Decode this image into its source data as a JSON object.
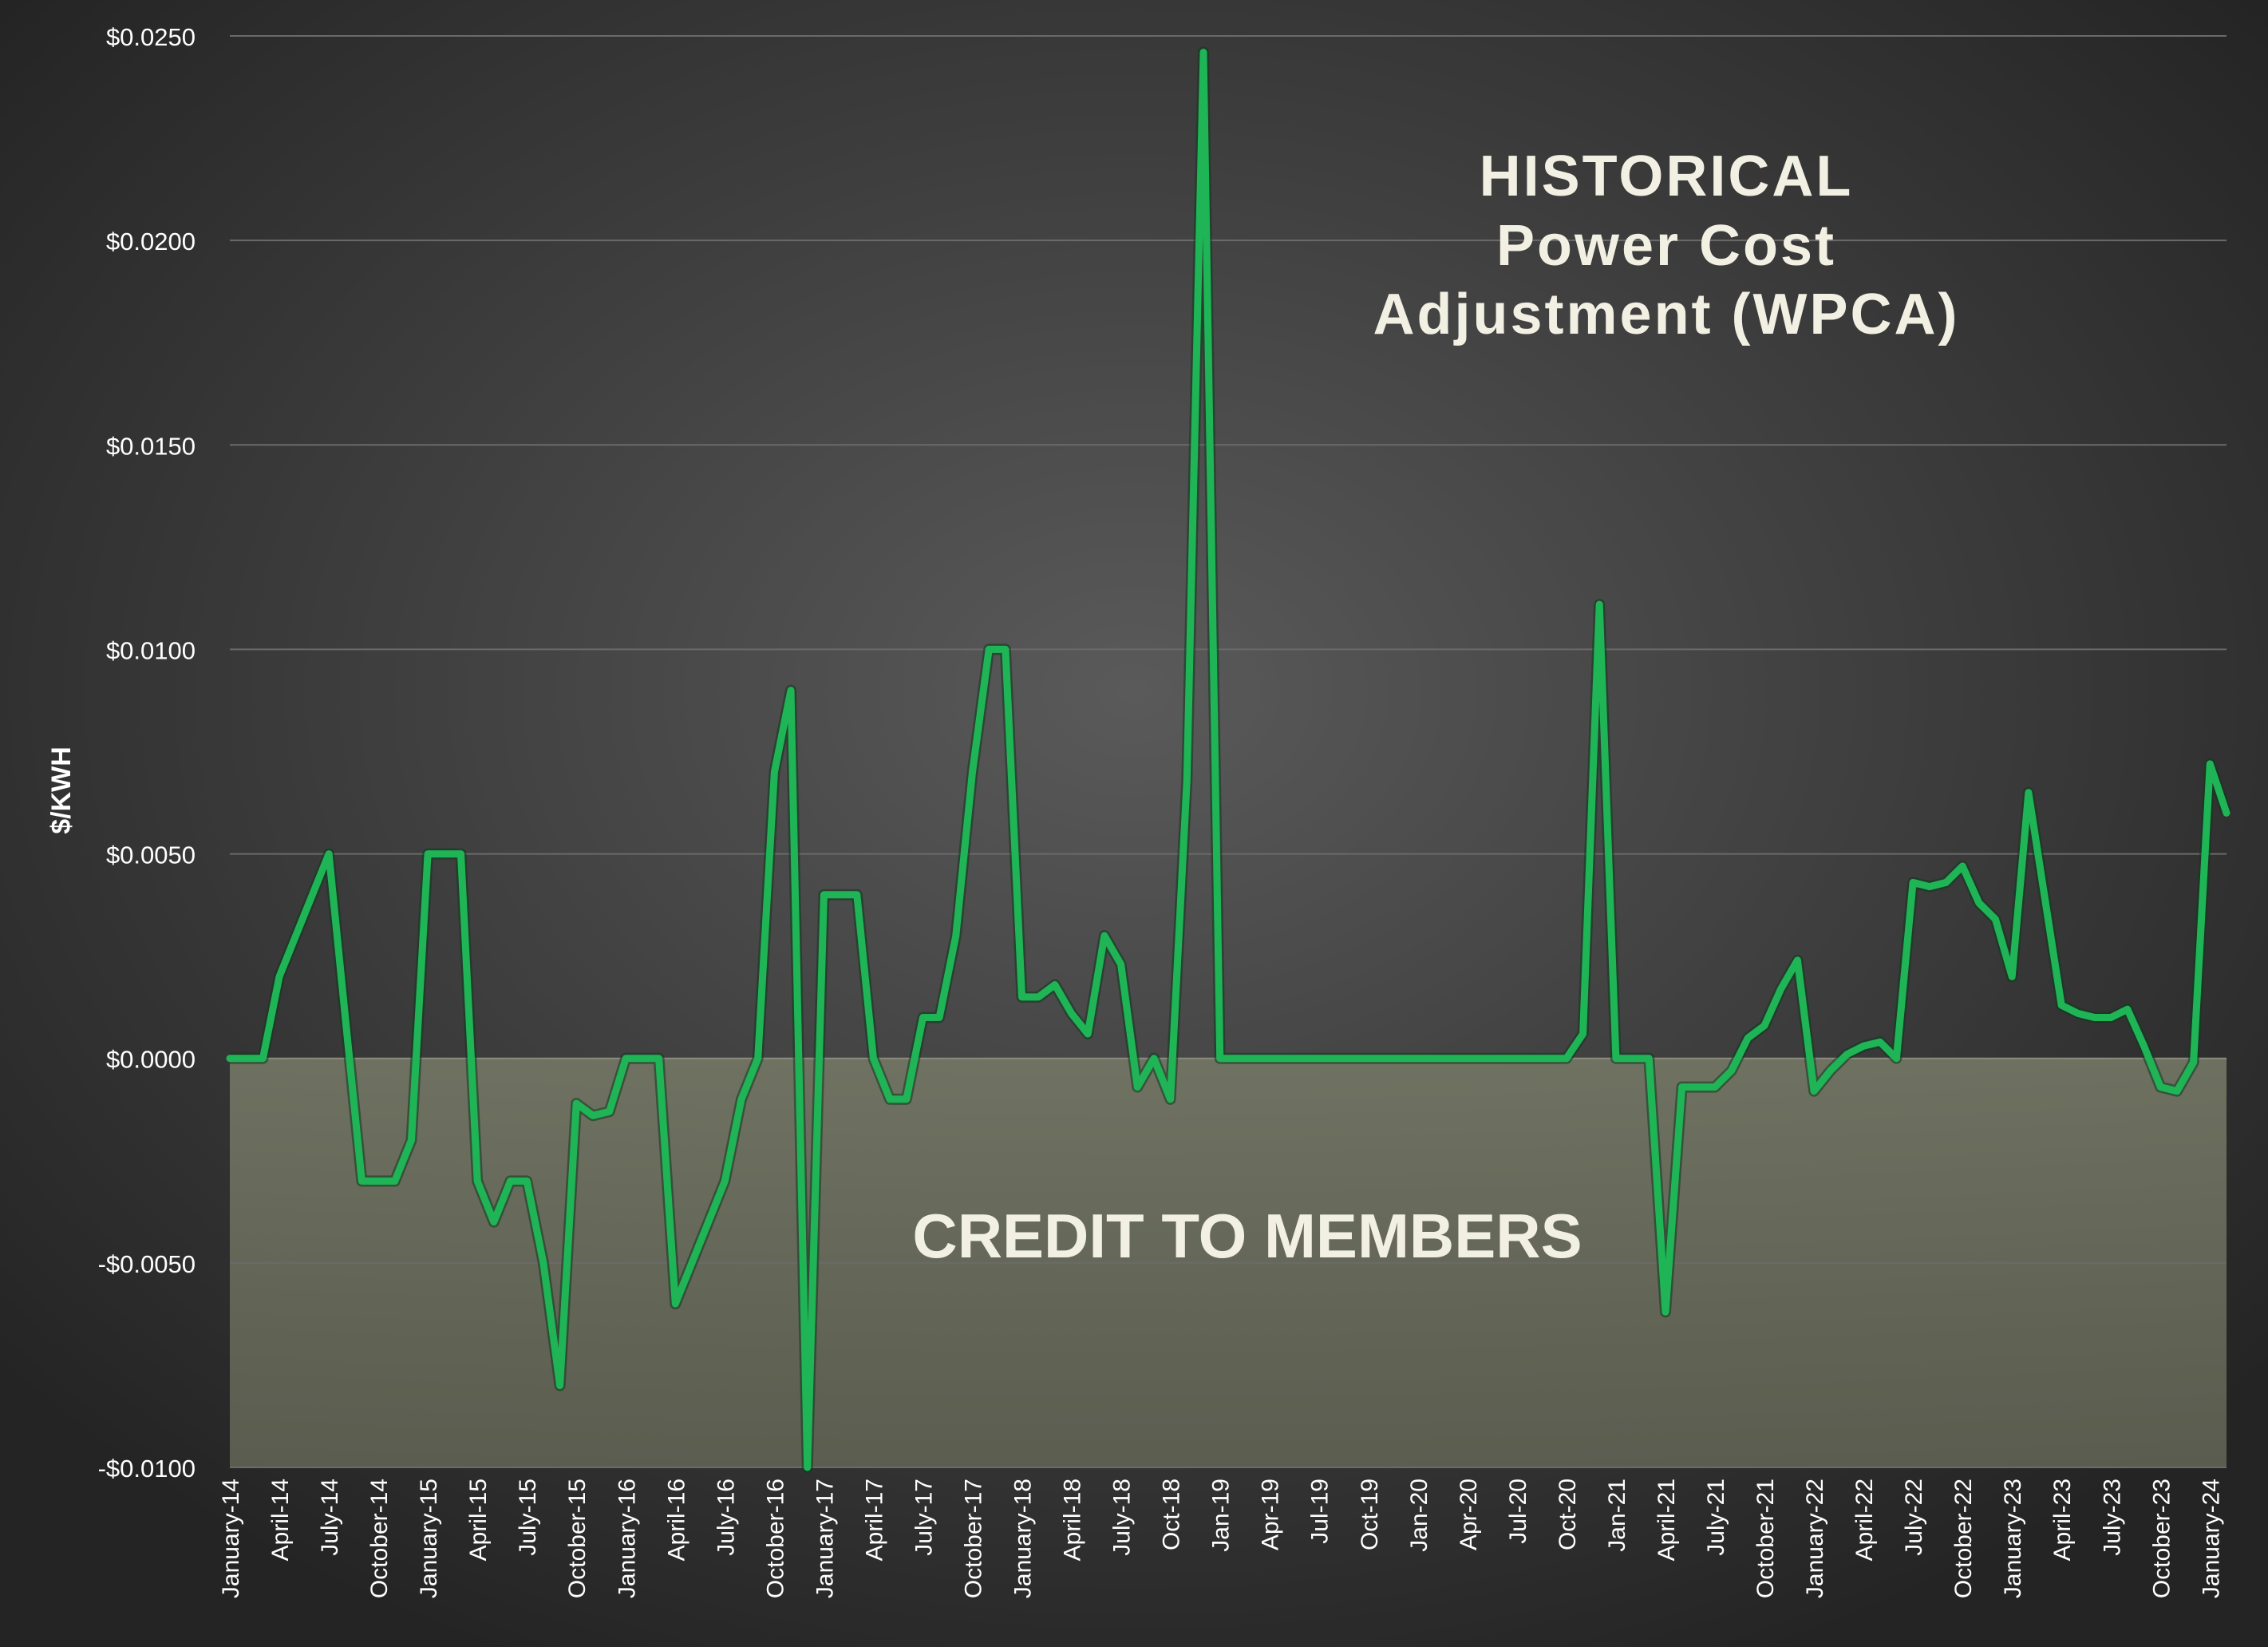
{
  "chart_data": {
    "type": "line",
    "title_lines": [
      "HISTORICAL",
      "Power Cost",
      "Adjustment (WPCA)"
    ],
    "ylabel": "$/KWH",
    "xlabel": "",
    "credit_label": "CREDIT TO MEMBERS",
    "ylim": [
      -0.01,
      0.025
    ],
    "y_ticks": [
      {
        "value": 0.025,
        "label": "$0.0250"
      },
      {
        "value": 0.02,
        "label": "$0.0200"
      },
      {
        "value": 0.015,
        "label": "$0.0150"
      },
      {
        "value": 0.01,
        "label": "$0.0100"
      },
      {
        "value": 0.005,
        "label": "$0.0050"
      },
      {
        "value": 0.0,
        "label": "$0.0000"
      },
      {
        "value": -0.005,
        "label": "-$0.0050"
      },
      {
        "value": -0.01,
        "label": "-$0.0100"
      }
    ],
    "x_tick_labels": [
      {
        "month": "2014-01",
        "label": "January-14"
      },
      {
        "month": "2014-04",
        "label": "April-14"
      },
      {
        "month": "2014-07",
        "label": "July-14"
      },
      {
        "month": "2014-10",
        "label": "October-14"
      },
      {
        "month": "2015-01",
        "label": "January-15"
      },
      {
        "month": "2015-04",
        "label": "April-15"
      },
      {
        "month": "2015-07",
        "label": "July-15"
      },
      {
        "month": "2015-10",
        "label": "October-15"
      },
      {
        "month": "2016-01",
        "label": "January-16"
      },
      {
        "month": "2016-04",
        "label": "April-16"
      },
      {
        "month": "2016-07",
        "label": "July-16"
      },
      {
        "month": "2016-10",
        "label": "October-16"
      },
      {
        "month": "2017-01",
        "label": "January-17"
      },
      {
        "month": "2017-04",
        "label": "April-17"
      },
      {
        "month": "2017-07",
        "label": "July-17"
      },
      {
        "month": "2017-10",
        "label": "October-17"
      },
      {
        "month": "2018-01",
        "label": "January-18"
      },
      {
        "month": "2018-04",
        "label": "April-18"
      },
      {
        "month": "2018-07",
        "label": "July-18"
      },
      {
        "month": "2018-10",
        "label": "Oct-18"
      },
      {
        "month": "2019-01",
        "label": "Jan-19"
      },
      {
        "month": "2019-04",
        "label": "Apr-19"
      },
      {
        "month": "2019-07",
        "label": "Jul-19"
      },
      {
        "month": "2019-10",
        "label": "Oct-19"
      },
      {
        "month": "2020-01",
        "label": "Jan-20"
      },
      {
        "month": "2020-04",
        "label": "Apr-20"
      },
      {
        "month": "2020-07",
        "label": "Jul-20"
      },
      {
        "month": "2020-10",
        "label": "Oct-20"
      },
      {
        "month": "2021-01",
        "label": "Jan-21"
      },
      {
        "month": "2021-04",
        "label": "April-21"
      },
      {
        "month": "2021-07",
        "label": "July-21"
      },
      {
        "month": "2021-10",
        "label": "October-21"
      },
      {
        "month": "2022-01",
        "label": "January-22"
      },
      {
        "month": "2022-04",
        "label": "April-22"
      },
      {
        "month": "2022-07",
        "label": "July-22"
      },
      {
        "month": "2022-10",
        "label": "October-22"
      },
      {
        "month": "2023-01",
        "label": "January-23"
      },
      {
        "month": "2023-04",
        "label": "April-23"
      },
      {
        "month": "2023-07",
        "label": "July-23"
      },
      {
        "month": "2023-10",
        "label": "October-23"
      },
      {
        "month": "2024-01",
        "label": "January-24"
      }
    ],
    "grid": true,
    "colors": {
      "line": "#1fb556",
      "credit_band": "#6b6e5c",
      "background": "#2b2b2b"
    },
    "series": [
      {
        "points": [
          [
            "2014-01",
            0.0
          ],
          [
            "2014-02",
            0.0
          ],
          [
            "2014-03",
            0.0
          ],
          [
            "2014-04",
            0.002
          ],
          [
            "2014-05",
            0.003
          ],
          [
            "2014-06",
            0.004
          ],
          [
            "2014-07",
            0.005
          ],
          [
            "2014-08",
            0.001
          ],
          [
            "2014-09",
            -0.003
          ],
          [
            "2014-10",
            -0.003
          ],
          [
            "2014-11",
            -0.003
          ],
          [
            "2014-12",
            -0.002
          ],
          [
            "2015-01",
            0.005
          ],
          [
            "2015-02",
            0.005
          ],
          [
            "2015-03",
            0.005
          ],
          [
            "2015-04",
            -0.003
          ],
          [
            "2015-05",
            -0.004
          ],
          [
            "2015-06",
            -0.003
          ],
          [
            "2015-07",
            -0.003
          ],
          [
            "2015-08",
            -0.005
          ],
          [
            "2015-09",
            -0.008
          ],
          [
            "2015-10",
            -0.0011
          ],
          [
            "2015-11",
            -0.0014
          ],
          [
            "2015-12",
            -0.0013
          ],
          [
            "2016-01",
            0.0
          ],
          [
            "2016-02",
            0.0
          ],
          [
            "2016-03",
            0.0
          ],
          [
            "2016-04",
            -0.006
          ],
          [
            "2016-05",
            -0.005
          ],
          [
            "2016-06",
            -0.004
          ],
          [
            "2016-07",
            -0.003
          ],
          [
            "2016-08",
            -0.001
          ],
          [
            "2016-09",
            0.0
          ],
          [
            "2016-10",
            0.007
          ],
          [
            "2016-11",
            0.009
          ],
          [
            "2016-12",
            -0.01
          ],
          [
            "2017-01",
            0.004
          ],
          [
            "2017-02",
            0.004
          ],
          [
            "2017-03",
            0.004
          ],
          [
            "2017-04",
            0.0
          ],
          [
            "2017-05",
            -0.001
          ],
          [
            "2017-06",
            -0.001
          ],
          [
            "2017-07",
            0.001
          ],
          [
            "2017-08",
            0.001
          ],
          [
            "2017-09",
            0.003
          ],
          [
            "2017-10",
            0.007
          ],
          [
            "2017-11",
            0.01
          ],
          [
            "2017-12",
            0.01
          ],
          [
            "2018-01",
            0.0015
          ],
          [
            "2018-02",
            0.0015
          ],
          [
            "2018-03",
            0.0018
          ],
          [
            "2018-04",
            0.0011
          ],
          [
            "2018-05",
            0.0006
          ],
          [
            "2018-06",
            0.003
          ],
          [
            "2018-07",
            0.0023
          ],
          [
            "2018-08",
            -0.0007
          ],
          [
            "2018-09",
            0.0
          ],
          [
            "2018-10",
            -0.001
          ],
          [
            "2018-11",
            0.0068
          ],
          [
            "2018-12",
            0.0246
          ],
          [
            "2019-01",
            0.0
          ],
          [
            "2019-02",
            0.0
          ],
          [
            "2019-03",
            0.0
          ],
          [
            "2019-04",
            0.0
          ],
          [
            "2019-05",
            0.0
          ],
          [
            "2019-06",
            0.0
          ],
          [
            "2019-07",
            0.0
          ],
          [
            "2019-08",
            0.0
          ],
          [
            "2019-09",
            0.0
          ],
          [
            "2019-10",
            0.0
          ],
          [
            "2019-11",
            0.0
          ],
          [
            "2019-12",
            0.0
          ],
          [
            "2020-01",
            0.0
          ],
          [
            "2020-02",
            0.0
          ],
          [
            "2020-03",
            0.0
          ],
          [
            "2020-04",
            0.0
          ],
          [
            "2020-05",
            0.0
          ],
          [
            "2020-06",
            0.0
          ],
          [
            "2020-07",
            0.0
          ],
          [
            "2020-08",
            0.0
          ],
          [
            "2020-09",
            0.0
          ],
          [
            "2020-10",
            0.0
          ],
          [
            "2020-11",
            0.0006
          ],
          [
            "2020-12",
            0.0111
          ],
          [
            "2021-01",
            0.0
          ],
          [
            "2021-02",
            0.0
          ],
          [
            "2021-03",
            0.0
          ],
          [
            "2021-04",
            -0.0062
          ],
          [
            "2021-05",
            -0.0007
          ],
          [
            "2021-06",
            -0.0007
          ],
          [
            "2021-07",
            -0.0007
          ],
          [
            "2021-08",
            -0.0003
          ],
          [
            "2021-09",
            0.0005
          ],
          [
            "2021-10",
            0.0008
          ],
          [
            "2021-11",
            0.0017
          ],
          [
            "2021-12",
            0.0024
          ],
          [
            "2022-01",
            -0.0008
          ],
          [
            "2022-02",
            -0.0003
          ],
          [
            "2022-03",
            0.0001
          ],
          [
            "2022-04",
            0.0003
          ],
          [
            "2022-05",
            0.0004
          ],
          [
            "2022-06",
            0.0
          ],
          [
            "2022-07",
            0.0043
          ],
          [
            "2022-08",
            0.0042
          ],
          [
            "2022-09",
            0.0043
          ],
          [
            "2022-10",
            0.0047
          ],
          [
            "2022-11",
            0.0038
          ],
          [
            "2022-12",
            0.0034
          ],
          [
            "2023-01",
            0.002
          ],
          [
            "2023-02",
            0.0065
          ],
          [
            "2023-03",
            0.0039
          ],
          [
            "2023-04",
            0.0013
          ],
          [
            "2023-05",
            0.0011
          ],
          [
            "2023-06",
            0.001
          ],
          [
            "2023-07",
            0.001
          ],
          [
            "2023-08",
            0.0012
          ],
          [
            "2023-09",
            0.0003
          ],
          [
            "2023-10",
            -0.0007
          ],
          [
            "2023-11",
            -0.0008
          ],
          [
            "2023-12",
            -0.0001
          ],
          [
            "2024-01",
            0.0072
          ],
          [
            "2024-02",
            0.006
          ]
        ]
      }
    ]
  }
}
